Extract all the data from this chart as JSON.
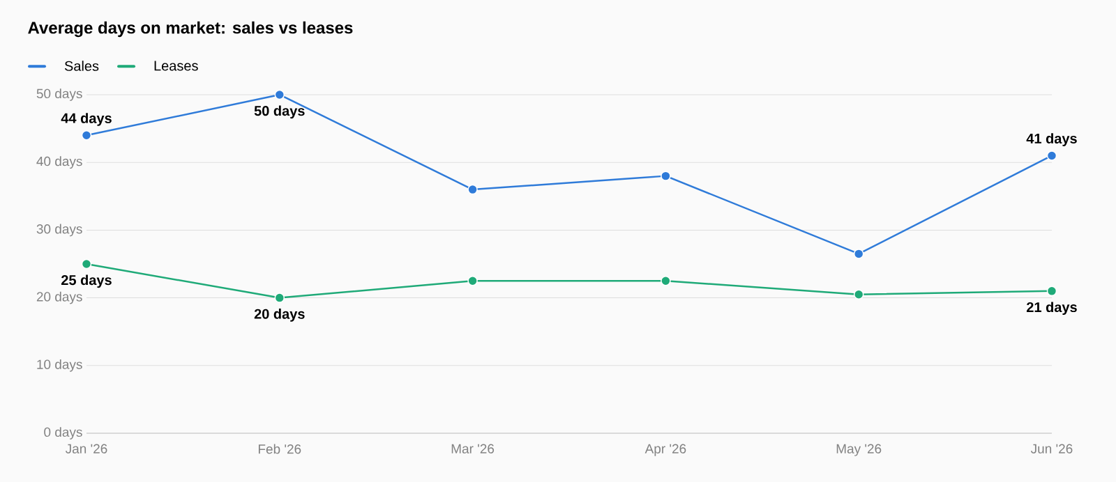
{
  "chart_data": {
    "type": "line",
    "title": "Average days on market: sales vs leases",
    "categories": [
      "Jan '26",
      "Feb '26",
      "Mar '26",
      "Apr '26",
      "May '26",
      "Jun '26"
    ],
    "series": [
      {
        "name": "Sales",
        "color": "#2f7bd9",
        "values": [
          44,
          50,
          36,
          38,
          26.5,
          41
        ],
        "value_labels": [
          "44 days",
          "50 days",
          null,
          null,
          null,
          "41 days"
        ]
      },
      {
        "name": "Leases",
        "color": "#1faa78",
        "values": [
          25,
          20,
          22.5,
          22.5,
          20.5,
          21
        ],
        "value_labels": [
          "25 days",
          "20 days",
          null,
          null,
          null,
          "21 days"
        ]
      }
    ],
    "ylim": [
      0,
      50
    ],
    "yticks": [
      {
        "value": 0,
        "label": "0 days"
      },
      {
        "value": 10,
        "label": "10 days"
      },
      {
        "value": 20,
        "label": "20 days"
      },
      {
        "value": 30,
        "label": "30 days"
      },
      {
        "value": 40,
        "label": "40 days"
      },
      {
        "value": 50,
        "label": "50 days"
      }
    ],
    "grid": "y",
    "legend": "top left",
    "marker": "circle",
    "line_style": "solid"
  }
}
